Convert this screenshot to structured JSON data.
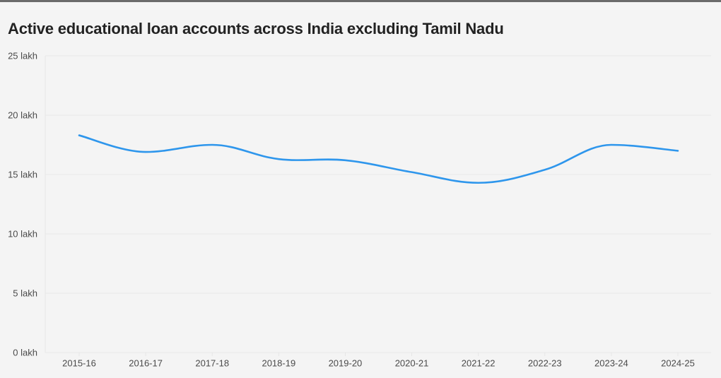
{
  "chart_data": {
    "type": "line",
    "title": "Active educational loan accounts across India excluding Tamil Nadu",
    "xlabel": "",
    "ylabel": "",
    "categories": [
      "2015-16",
      "2016-17",
      "2017-18",
      "2018-19",
      "2019-20",
      "2020-21",
      "2021-22",
      "2022-23",
      "2023-24",
      "2024-25"
    ],
    "series": [
      {
        "name": "Active educational loan accounts",
        "values": [
          18.3,
          16.9,
          17.5,
          16.3,
          16.2,
          15.2,
          14.3,
          15.4,
          17.5,
          17.0
        ],
        "color": "#2e96ec"
      }
    ],
    "ylim": [
      0,
      25
    ],
    "yticks": [
      0,
      5,
      10,
      15,
      20,
      25
    ],
    "ytick_labels": [
      "0 lakh",
      "5 lakh",
      "10 lakh",
      "15 lakh",
      "20 lakh",
      "25 lakh"
    ],
    "unit": "lakh",
    "grid": true,
    "legend": "none"
  }
}
